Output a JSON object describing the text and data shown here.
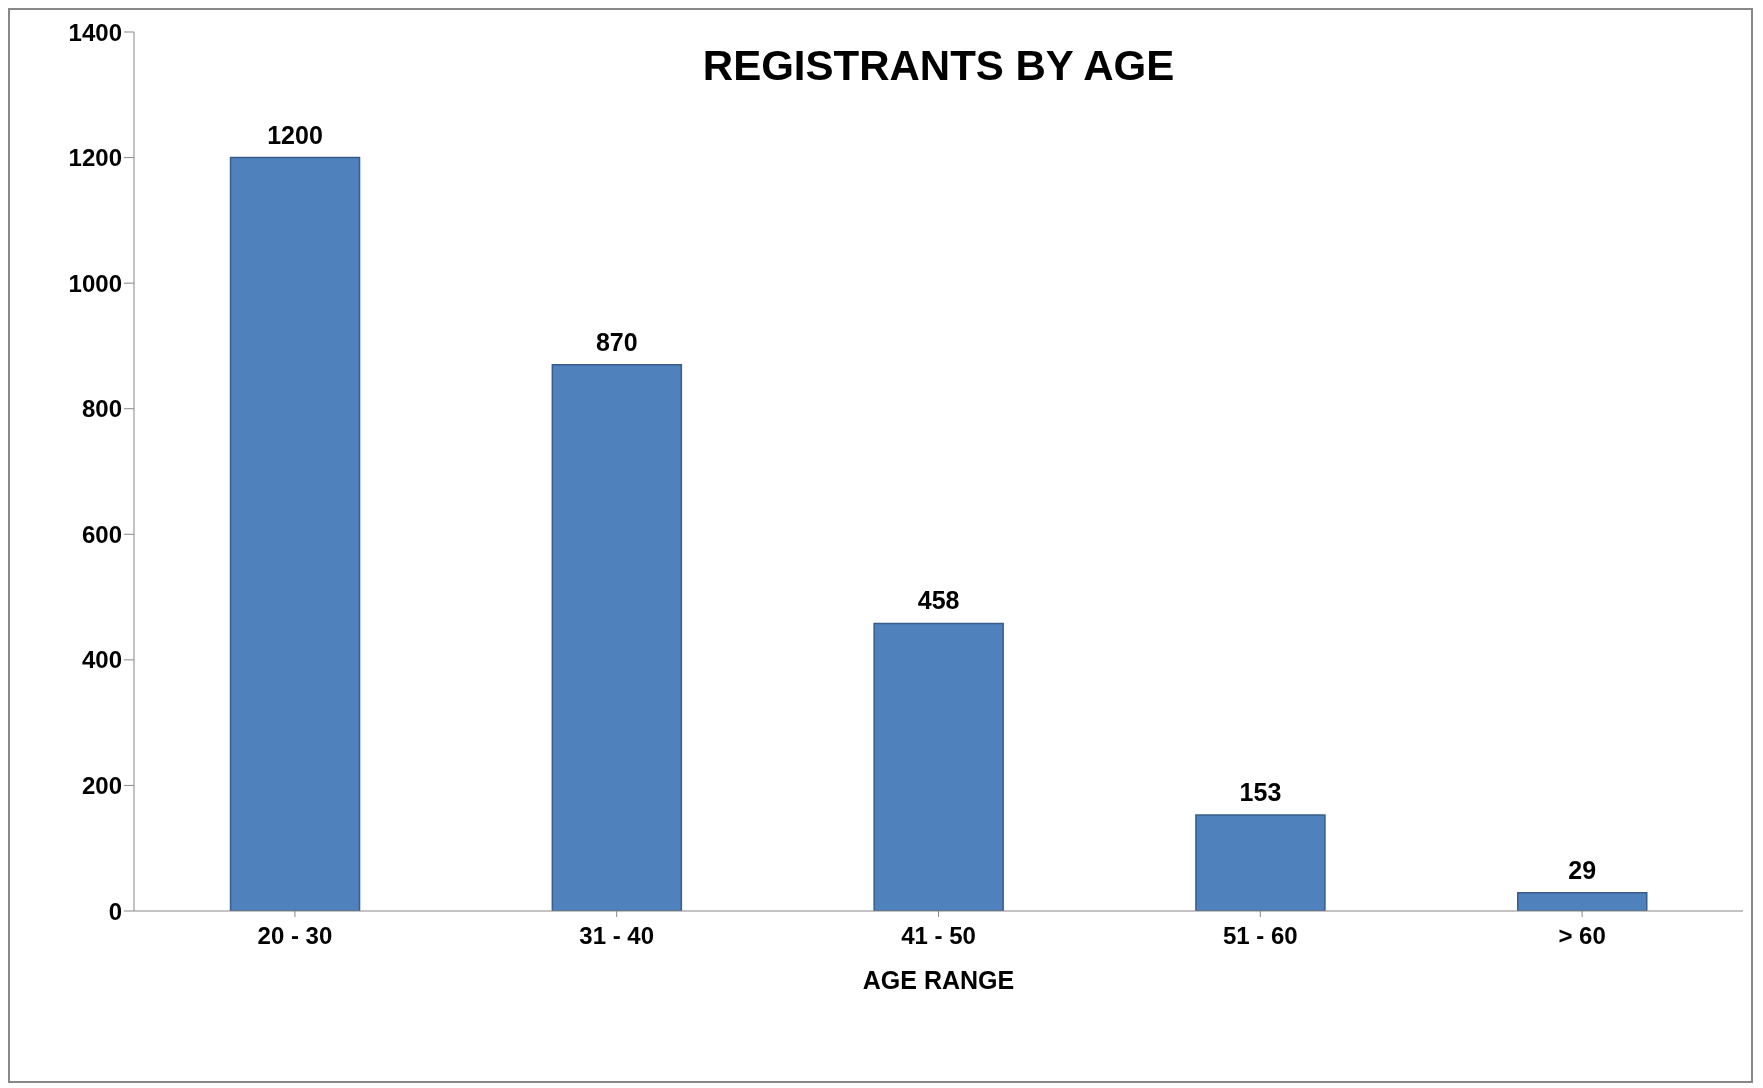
{
  "chart_data": {
    "type": "bar",
    "title": "REGISTRANTS BY AGE",
    "xlabel": "AGE RANGE",
    "categories": [
      "20 - 30",
      "31 - 40",
      "41 - 50",
      "51 - 60",
      "> 60"
    ],
    "values": [
      1200,
      870,
      458,
      153,
      29
    ],
    "color": "#4f81bd",
    "ylim": [
      0,
      1400
    ],
    "yticks": [
      0,
      200,
      400,
      600,
      800,
      1000,
      1200,
      1400
    ],
    "grid": false,
    "data_labels": true,
    "legend": false
  }
}
